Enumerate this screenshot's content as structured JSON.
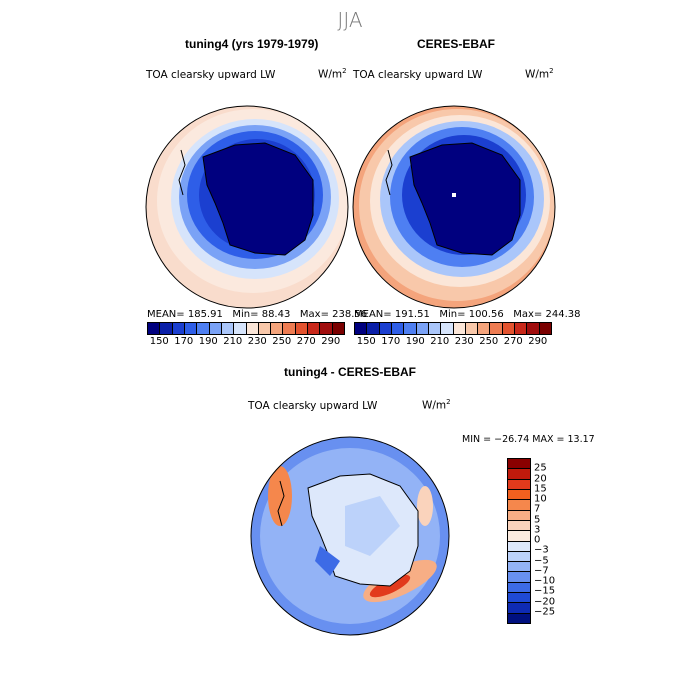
{
  "season": "JJA",
  "panels": [
    {
      "title": "tuning4 (yrs 1979-1979)",
      "variable": "TOA clearsky upward LW",
      "units": "W/m",
      "units_exp": "2",
      "mean_label": "MEAN=",
      "mean": "185.91",
      "min_label": "Min=",
      "min": "88.43",
      "max_label": "Max=",
      "max": "238.56"
    },
    {
      "title": "CERES-EBAF",
      "variable": "TOA clearsky upward LW",
      "units": "W/m",
      "units_exp": "2",
      "mean_label": "MEAN=",
      "mean": "191.51",
      "min_label": "Min=",
      "min": "100.56",
      "max_label": "Max=",
      "max": "244.38"
    }
  ],
  "colorbar": {
    "ticks": [
      "150",
      "170",
      "190",
      "210",
      "230",
      "250",
      "270",
      "290"
    ],
    "colors": [
      "#00007f",
      "#0a1fa8",
      "#1b3fd0",
      "#2e5ee8",
      "#4e7ff2",
      "#7aa2f6",
      "#aac6fa",
      "#d6e4fb",
      "#fbe6d8",
      "#f8c8aa",
      "#f4a47c",
      "#ee7c52",
      "#e3532f",
      "#c8281a",
      "#a00d0d",
      "#7a0000"
    ]
  },
  "diff": {
    "title": "tuning4 - CERES-EBAF",
    "variable": "TOA clearsky upward LW",
    "units": "W/m",
    "units_exp": "2",
    "minmax_text": "MIN = −26.74  MAX =  13.17",
    "colorbar": {
      "labels": [
        "25",
        "20",
        "15",
        "10",
        "7",
        "5",
        "3",
        "0",
        "−3",
        "−5",
        "−7",
        "−10",
        "−15",
        "−20",
        "−25"
      ],
      "colors": [
        "#8a0000",
        "#c01a0c",
        "#e23a1c",
        "#f2601f",
        "#f5874c",
        "#f7ae85",
        "#fad3bc",
        "#fbebdf",
        "#dde8fb",
        "#bcd2fa",
        "#93b3f6",
        "#6890f0",
        "#3d6be6",
        "#1f4ad4",
        "#0e2bb3",
        "#00107f"
      ]
    }
  }
}
